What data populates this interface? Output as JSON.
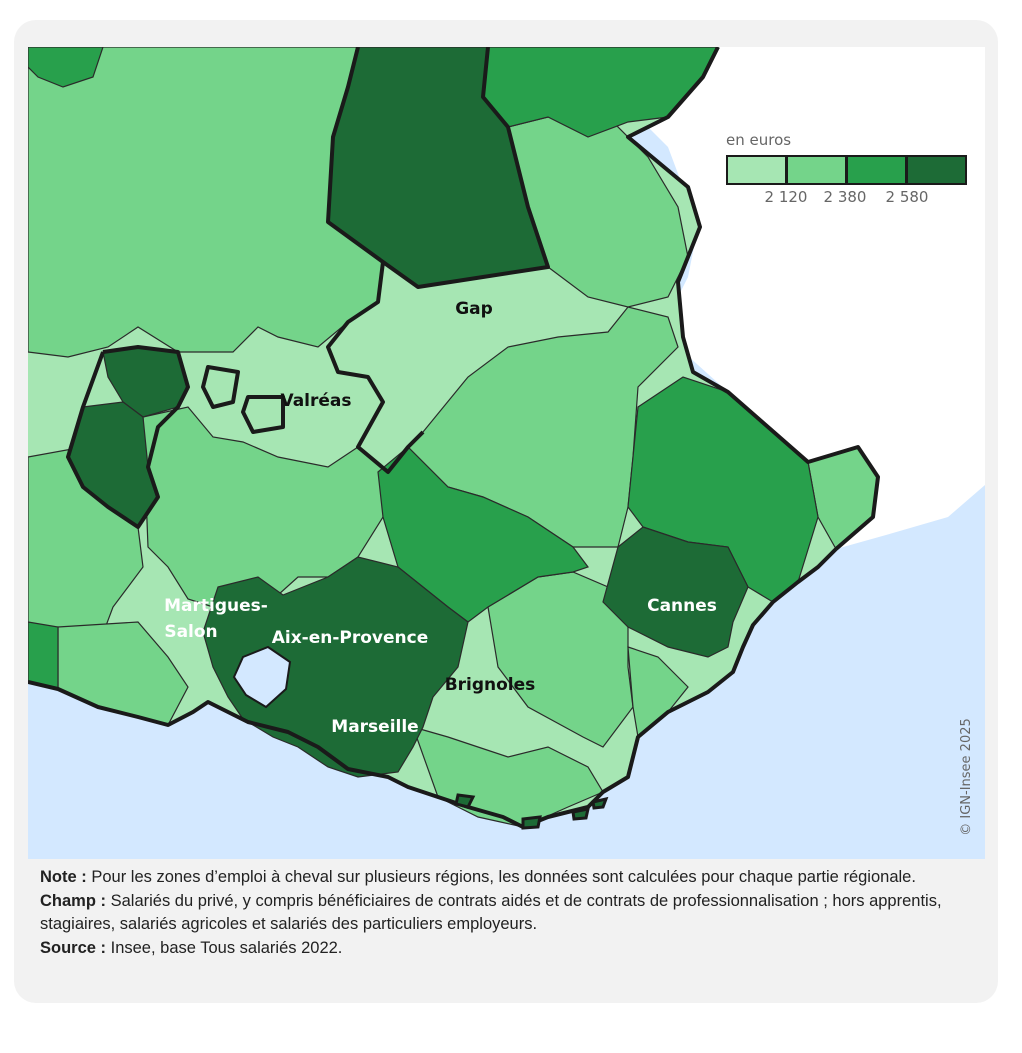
{
  "legend": {
    "title": "en euros",
    "thresholds": [
      "2 120",
      "2 380",
      "2 580"
    ],
    "colors": [
      "#a6e6b3",
      "#74d48a",
      "#28a04c",
      "#1d6b36"
    ]
  },
  "colors": {
    "sea": "#d3e8ff",
    "land_outside": "#ffffff",
    "card_background": "#f2f2f2",
    "border": "#1a1a1a"
  },
  "labels": {
    "gap": "Gap",
    "valreas": "Valréas",
    "martigues_1": "Martigues-",
    "martigues_2": "Salon",
    "aix": "Aix-en-Provence",
    "brignoles": "Brignoles",
    "marseille": "Marseille",
    "cannes": "Cannes"
  },
  "copyright": "© IGN-Insee 2025",
  "notes": {
    "note_label": "Note :",
    "note_text": "Pour les zones d’emploi à cheval sur plusieurs régions, les données sont calculées pour chaque partie régionale.",
    "champ_label": "Champ :",
    "champ_text": "Salariés du privé, y compris bénéficiaires de contrats aidés et de contrats de professionnalisation ; hors apprentis, stagiaires, salariés agricoles et salariés des particuliers employeurs.",
    "source_label": "Source :",
    "source_text": "Insee, base Tous salariés 2022."
  }
}
